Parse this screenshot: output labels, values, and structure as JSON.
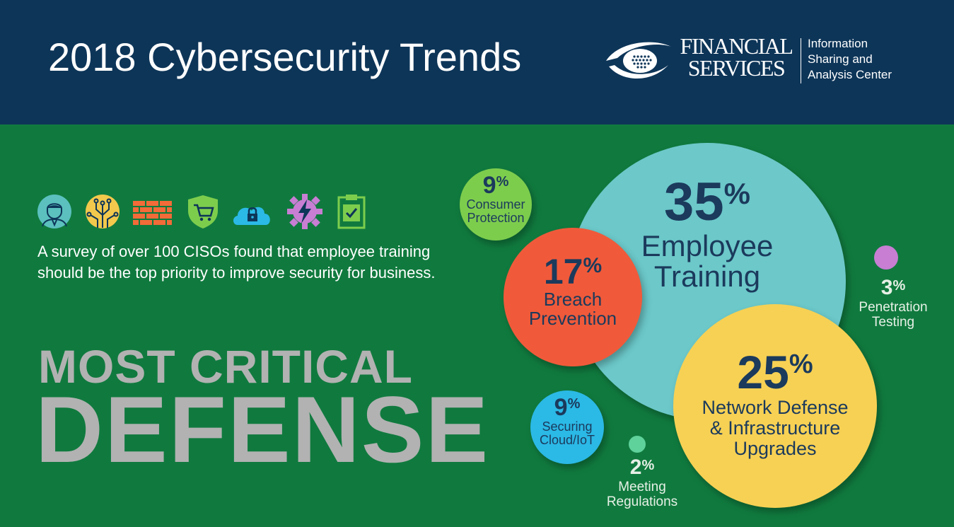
{
  "header": {
    "title": "2018 Cybersecurity Trends",
    "logo_line1": "FINANCIAL",
    "logo_line2": "SERVICES",
    "logo_sub1": "Information",
    "logo_sub2": "Sharing and",
    "logo_sub3": "Analysis Center"
  },
  "intro": {
    "text": "A survey of over 100 CISOs found that employee training should be the top priority to improve security for business."
  },
  "headline": {
    "line1": "MOST CRITICAL",
    "line2": "DEFENSE"
  },
  "icons": [
    "person-icon",
    "circuit-icon",
    "brick-wall-icon",
    "shield-cart-icon",
    "cloud-lock-icon",
    "gear-lightning-icon",
    "clipboard-check-icon"
  ],
  "colors": {
    "header_bg": "#0d3558",
    "main_bg": "#107a3e",
    "employee_training": "#6cc8c9",
    "breach_prevention": "#f05a3a",
    "network_defense": "#f7d154",
    "consumer_protection": "#7dcd4d",
    "securing_cloud": "#2bb9e6",
    "penetration_testing": "#c77ed3",
    "meeting_regulations": "#5fd19b"
  },
  "chart_data": {
    "type": "bubble",
    "series": [
      {
        "label": "Employee Training",
        "value": 35,
        "unit": "%"
      },
      {
        "label": "Network Defense & Infrastructure Upgrades",
        "value": 25,
        "unit": "%"
      },
      {
        "label": "Breach Prevention",
        "value": 17,
        "unit": "%"
      },
      {
        "label": "Consumer Protection",
        "value": 9,
        "unit": "%"
      },
      {
        "label": "Securing Cloud/IoT",
        "value": 9,
        "unit": "%"
      },
      {
        "label": "Penetration Testing",
        "value": 3,
        "unit": "%"
      },
      {
        "label": "Meeting Regulations",
        "value": 2,
        "unit": "%"
      }
    ]
  },
  "bubbles": {
    "employee": {
      "num": "35",
      "pct": "%",
      "line1": "Employee",
      "line2": "Training"
    },
    "network": {
      "num": "25",
      "pct": "%",
      "line1": "Network Defense",
      "line2": "& Infrastructure",
      "line3": "Upgrades"
    },
    "breach": {
      "num": "17",
      "pct": "%",
      "line1": "Breach",
      "line2": "Prevention"
    },
    "consumer": {
      "num": "9",
      "pct": "%",
      "line1": "Consumer",
      "line2": "Protection"
    },
    "cloud": {
      "num": "9",
      "pct": "%",
      "line1": "Securing",
      "line2": "Cloud/IoT"
    },
    "penetration": {
      "num": "3",
      "pct": "%",
      "line1": "Penetration",
      "line2": "Testing"
    },
    "regulations": {
      "num": "2",
      "pct": "%",
      "line1": "Meeting",
      "line2": "Regulations"
    }
  }
}
